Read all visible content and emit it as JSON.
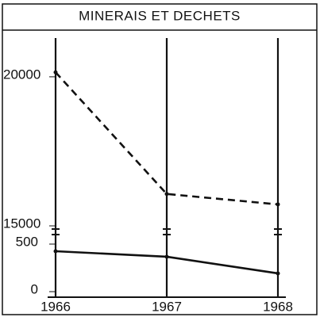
{
  "chart_data": {
    "type": "line",
    "title": "MINERAIS ET DECHETS",
    "categories": [
      "1966",
      "1967",
      "1968"
    ],
    "series": [
      {
        "color": "#111111",
        "line_style": "dashed",
        "axis": "y2",
        "values": [
          20150,
          16070,
          15720
        ]
      },
      {
        "color": "#111111",
        "line_style": "solid",
        "values": [
          425,
          367,
          192
        ]
      }
    ],
    "ylim": [
      0,
      600
    ],
    "yticks": [
      0,
      500
    ],
    "y2lim": [
      15000,
      21300
    ],
    "y2ticks": [
      15000,
      20000
    ],
    "grid": false
  }
}
